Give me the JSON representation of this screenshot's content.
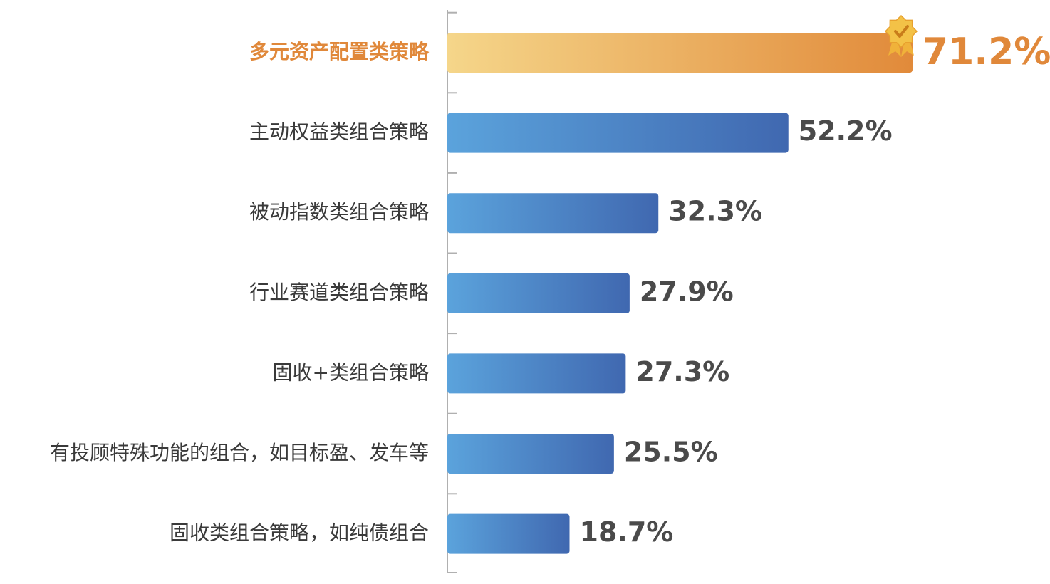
{
  "chart_data": {
    "type": "bar",
    "orientation": "horizontal",
    "title": "",
    "xlabel": "",
    "ylabel": "",
    "xlim": [
      0,
      100
    ],
    "grid": false,
    "legend": "none",
    "highlight_index": 0,
    "categories": [
      "多元资产配置类策略",
      "主动权益类组合策略",
      "被动指数类组合策略",
      "行业赛道类组合策略",
      "固收+类组合策略",
      "有投顾特殊功能的组合，如目标盈、发车等",
      "固收类组合策略，如纯债组合"
    ],
    "values": [
      71.2,
      52.2,
      32.3,
      27.9,
      27.3,
      25.5,
      18.7
    ],
    "value_labels": [
      "71.2%",
      "52.2%",
      "32.3%",
      "27.9%",
      "27.3%",
      "25.5%",
      "18.7%"
    ],
    "colors": {
      "highlight_start": "#f5d68a",
      "highlight_end": "#e18a3a",
      "bar_start": "#5ba3dc",
      "bar_end": "#4068b0",
      "axis": "#b0b0b0",
      "highlight_text": "#e0883a",
      "text": "#3a3a3a"
    }
  }
}
